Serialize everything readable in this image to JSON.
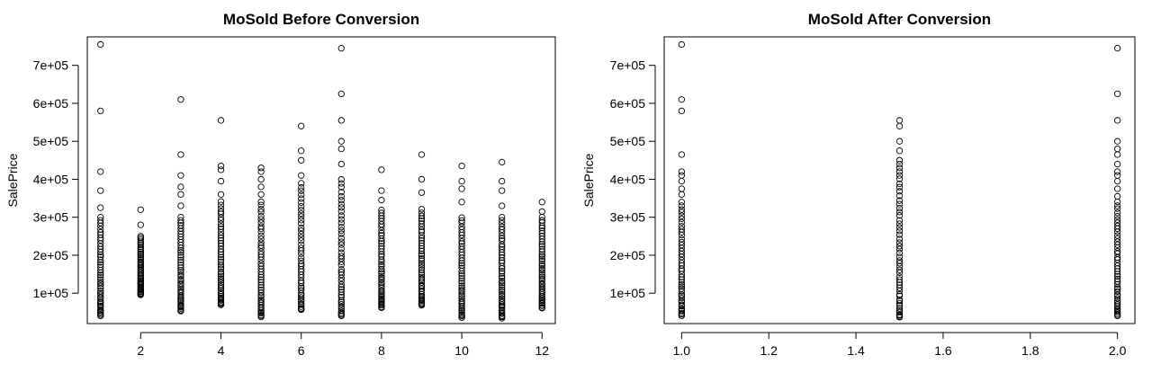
{
  "chart_data": [
    {
      "type": "scatter",
      "title": "MoSold Before Conversion",
      "xlabel": "",
      "ylabel": "SalePrice",
      "xlim": [
        0.67,
        12.33
      ],
      "ylim": [
        20000,
        775000
      ],
      "x_ticks": [
        2,
        4,
        6,
        8,
        10,
        12
      ],
      "x_tick_labels": [
        "2",
        "4",
        "6",
        "8",
        "10",
        "12"
      ],
      "y_ticks": [
        100000,
        200000,
        300000,
        400000,
        500000,
        600000,
        700000
      ],
      "y_tick_labels": [
        "1e+05",
        "2e+05",
        "3e+05",
        "4e+05",
        "5e+05",
        "6e+05",
        "7e+05"
      ],
      "grid": false,
      "point_groups": [
        {
          "x": 1,
          "low": 40000,
          "high": 300000,
          "outliers": [
            325000,
            370000,
            420000,
            580000,
            755000
          ]
        },
        {
          "x": 2,
          "low": 95000,
          "high": 250000,
          "outliers": [
            280000,
            320000
          ]
        },
        {
          "x": 3,
          "low": 52000,
          "high": 300000,
          "outliers": [
            330000,
            360000,
            380000,
            410000,
            465000,
            610000
          ]
        },
        {
          "x": 4,
          "low": 70000,
          "high": 340000,
          "outliers": [
            360000,
            395000,
            425000,
            435000,
            555000
          ]
        },
        {
          "x": 5,
          "low": 38000,
          "high": 340000,
          "outliers": [
            360000,
            380000,
            400000,
            420000,
            430000
          ]
        },
        {
          "x": 6,
          "low": 55000,
          "high": 390000,
          "outliers": [
            410000,
            450000,
            475000,
            540000
          ]
        },
        {
          "x": 7,
          "low": 40000,
          "high": 400000,
          "outliers": [
            440000,
            480000,
            500000,
            555000,
            625000,
            745000
          ]
        },
        {
          "x": 8,
          "low": 63000,
          "high": 320000,
          "outliers": [
            345000,
            370000,
            425000
          ]
        },
        {
          "x": 9,
          "low": 68000,
          "high": 320000,
          "outliers": [
            365000,
            400000,
            465000
          ]
        },
        {
          "x": 10,
          "low": 35000,
          "high": 300000,
          "outliers": [
            340000,
            375000,
            395000,
            435000
          ]
        },
        {
          "x": 11,
          "low": 35000,
          "high": 300000,
          "outliers": [
            330000,
            370000,
            395000,
            445000
          ]
        },
        {
          "x": 12,
          "low": 60000,
          "high": 300000,
          "outliers": [
            315000,
            340000
          ]
        }
      ]
    },
    {
      "type": "scatter",
      "title": "MoSold After Conversion",
      "xlabel": "",
      "ylabel": "SalePrice",
      "xlim": [
        0.96,
        2.04
      ],
      "ylim": [
        20000,
        775000
      ],
      "x_ticks": [
        1.0,
        1.2,
        1.4,
        1.6,
        1.8,
        2.0
      ],
      "x_tick_labels": [
        "1.0",
        "1.2",
        "1.4",
        "1.6",
        "1.8",
        "2.0"
      ],
      "y_ticks": [
        100000,
        200000,
        300000,
        400000,
        500000,
        600000,
        700000
      ],
      "y_tick_labels": [
        "1e+05",
        "2e+05",
        "3e+05",
        "4e+05",
        "5e+05",
        "6e+05",
        "7e+05"
      ],
      "grid": false,
      "point_groups": [
        {
          "x": 1.0,
          "low": 40000,
          "high": 340000,
          "outliers": [
            360000,
            375000,
            395000,
            410000,
            420000,
            465000,
            580000,
            610000,
            755000
          ]
        },
        {
          "x": 1.5,
          "low": 35000,
          "high": 400000,
          "outliers": [
            410000,
            420000,
            430000,
            440000,
            450000,
            475000,
            500000,
            540000,
            555000
          ]
        },
        {
          "x": 2.0,
          "low": 40000,
          "high": 340000,
          "outliers": [
            355000,
            375000,
            395000,
            410000,
            420000,
            440000,
            465000,
            480000,
            500000,
            555000,
            625000,
            745000
          ]
        }
      ]
    }
  ]
}
